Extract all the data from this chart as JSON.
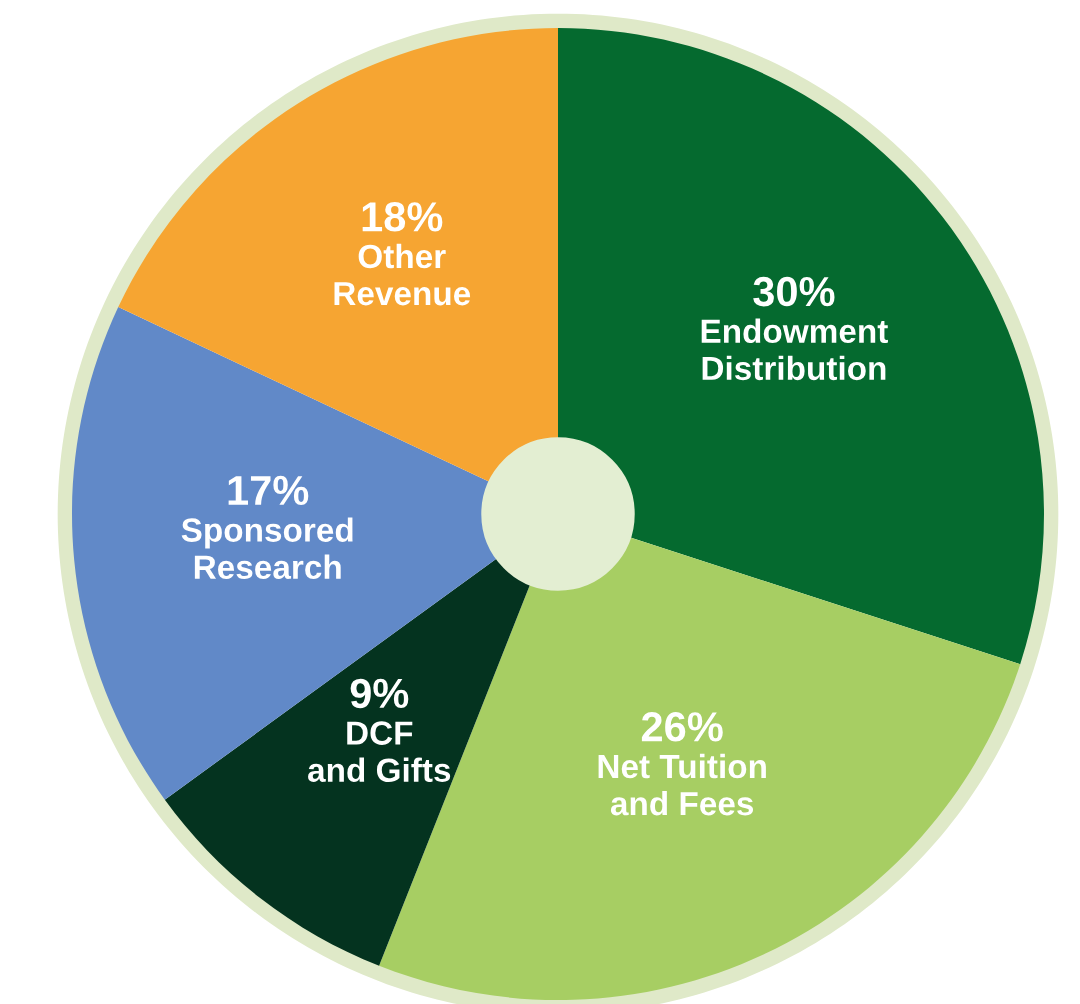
{
  "chart_data": {
    "type": "donut",
    "categories": [
      "Endowment\nDistribution",
      "Net Tuition\nand Fees",
      "DCF\nand Gifts",
      "Sponsored\nResearch",
      "Other\nRevenue"
    ],
    "values": [
      30,
      26,
      9,
      17,
      18
    ],
    "value_labels": [
      "30%",
      "26%",
      "9%",
      "17%",
      "18%"
    ],
    "colors": [
      "#056a2f",
      "#a7ce63",
      "#04331f",
      "#6189c8",
      "#f6a532"
    ],
    "legend": false
  }
}
